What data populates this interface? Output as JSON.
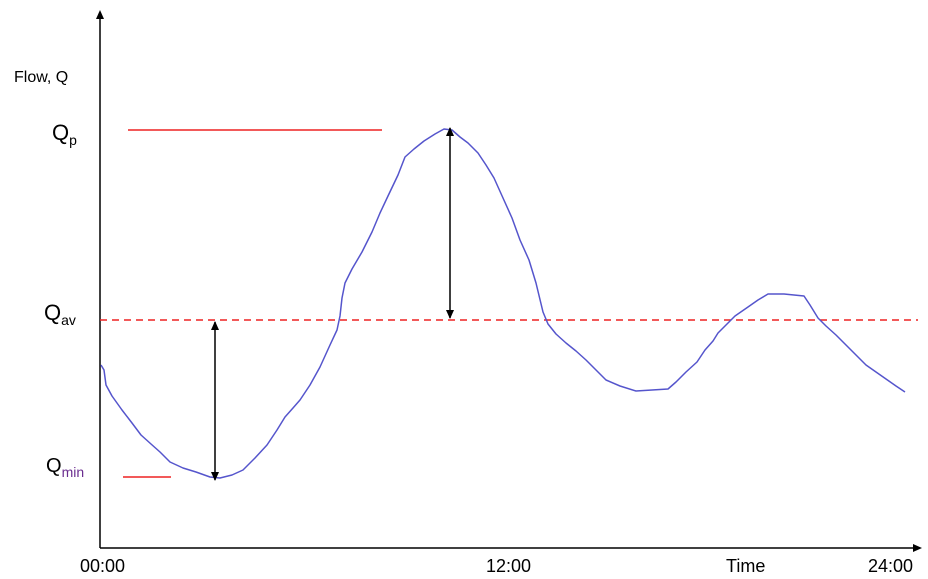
{
  "diagram": {
    "y_axis_label": "Flow, Q",
    "x_axis_label": "Time",
    "x_ticks": [
      "00:00",
      "12:00",
      "24:00"
    ],
    "levels": {
      "peak": {
        "symbol": "Q",
        "subscript": "p"
      },
      "average": {
        "symbol": "Q",
        "subscript": "av"
      },
      "minimum": {
        "symbol": "Q",
        "subscript": "min"
      }
    },
    "colors": {
      "axes": "#000000",
      "flow_curve": "#5555cc",
      "reference_lines": "#ee2222",
      "text": "#000000",
      "min_subscript": "#6a2d8f"
    }
  }
}
